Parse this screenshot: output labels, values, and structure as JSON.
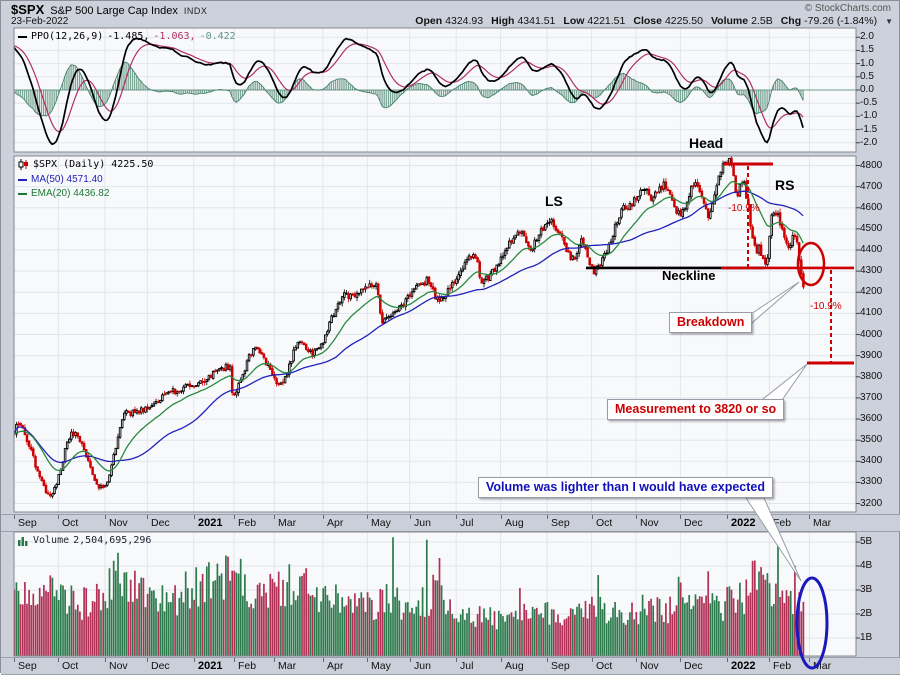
{
  "header": {
    "symbol": "$SPX",
    "name": "S&P 500 Large Cap Index",
    "exchange": "INDX",
    "date": "23-Feb-2022",
    "copyright": "© StockCharts.com",
    "quote": [
      {
        "label": "Open",
        "value": "4324.93"
      },
      {
        "label": "High",
        "value": "4341.51"
      },
      {
        "label": "Low",
        "value": "4221.51"
      },
      {
        "label": "Close",
        "value": "4225.50"
      },
      {
        "label": "Volume",
        "value": "2.5B"
      },
      {
        "label": "Chg",
        "value": "-79.26 (-1.84%)"
      }
    ],
    "dropdown_arrow": "▼"
  },
  "colors": {
    "background": "#cdd1db",
    "panel_bg": "#f8f9fb",
    "grid": "#e3e5ee",
    "border": "#82878f",
    "annotation_red": "#cc0000",
    "annotation_blue": "#1a1abb",
    "candle_up": "#000000",
    "candle_down": "#cc0000"
  },
  "x_axis": {
    "labels": [
      {
        "text": "Sep",
        "bold": false
      },
      {
        "text": "Oct",
        "bold": false
      },
      {
        "text": "Nov",
        "bold": false
      },
      {
        "text": "Dec",
        "bold": false
      },
      {
        "text": "2021",
        "bold": true
      },
      {
        "text": "Feb",
        "bold": false
      },
      {
        "text": "Mar",
        "bold": false
      },
      {
        "text": "Apr",
        "bold": false
      },
      {
        "text": "May",
        "bold": false
      },
      {
        "text": "Jun",
        "bold": false
      },
      {
        "text": "Jul",
        "bold": false
      },
      {
        "text": "Aug",
        "bold": false
      },
      {
        "text": "Sep",
        "bold": false
      },
      {
        "text": "Oct",
        "bold": false
      },
      {
        "text": "Nov",
        "bold": false
      },
      {
        "text": "Dec",
        "bold": false
      },
      {
        "text": "2022",
        "bold": true
      },
      {
        "text": "Feb",
        "bold": false
      },
      {
        "text": "Mar",
        "bold": false
      }
    ]
  },
  "chart_data": [
    {
      "type": "line",
      "name": "PPO (Percentage Price Oscillator)",
      "params": "12,26,9",
      "ylim": [
        -2.35,
        2.35
      ],
      "grid_step": 0.5,
      "current_values": {
        "ppo": -1.485,
        "signal": -1.063,
        "histogram": -0.422
      },
      "legend": {
        "name": "PPO(12,26,9)",
        "ppo_text": "-1.485,",
        "signal_text": "-1.063,",
        "hist_text": "-0.422"
      },
      "axis_ticks": [
        "2.0",
        "1.5",
        "1.0",
        "0.5",
        "0.0",
        "-0.5",
        "-1.0",
        "-1.5",
        "-2.0"
      ],
      "colors": {
        "ppo": "#000000",
        "signal": "#b03060",
        "hist_fill": "#7aa695",
        "hist_line": "#49806d"
      },
      "init": {
        "e12_mult": 1.013,
        "e26_mult": 0.9945,
        "signal_init": 1.7
      }
    },
    {
      "type": "candlestick",
      "symbol": "$SPX",
      "timeframe": "Daily",
      "last_close": 4225.5,
      "ylim": [
        3160,
        4845
      ],
      "y_gridstep": 100,
      "n_slots": 398,
      "n_candles": 374,
      "month_slots": [
        0,
        21,
        43,
        63,
        85,
        104,
        123,
        146,
        167,
        187,
        209,
        230,
        252,
        273,
        294,
        315,
        337,
        357,
        376
      ],
      "anchors": [
        [
          0,
          3530
        ],
        [
          1,
          3580
        ],
        [
          17,
          3246
        ],
        [
          28,
          3534
        ],
        [
          42,
          3270
        ],
        [
          53,
          3627
        ],
        [
          84,
          3756
        ],
        [
          102,
          3850
        ],
        [
          103,
          3714
        ],
        [
          114,
          3933
        ],
        [
          126,
          3768
        ],
        [
          135,
          3974
        ],
        [
          141,
          3909
        ],
        [
          157,
          4185
        ],
        [
          171,
          4233
        ],
        [
          174,
          4063
        ],
        [
          196,
          4255
        ],
        [
          200,
          4166
        ],
        [
          218,
          4374
        ],
        [
          221,
          4258
        ],
        [
          240,
          4480
        ],
        [
          243,
          4406
        ],
        [
          253,
          4537
        ],
        [
          265,
          4358
        ],
        [
          268,
          4449
        ],
        [
          274,
          4300
        ],
        [
          290,
          4607
        ],
        [
          298,
          4698
        ],
        [
          301,
          4647
        ],
        [
          307,
          4705
        ],
        [
          314,
          4567
        ],
        [
          322,
          4712
        ],
        [
          328,
          4568
        ],
        [
          335,
          4793
        ],
        [
          338,
          4819
        ],
        [
          342,
          4670
        ],
        [
          344,
          4726
        ],
        [
          351,
          4398
        ],
        [
          352,
          4410
        ],
        [
          355,
          4327
        ],
        [
          359,
          4589
        ],
        [
          366,
          4419
        ],
        [
          369,
          4475
        ],
        [
          372,
          4305
        ],
        [
          373,
          4225.5
        ]
      ],
      "overlays": [
        {
          "name": "MA(50)",
          "period": 50,
          "color": "#2222bb",
          "current": 4571.4
        },
        {
          "name": "EMA(20)",
          "period": 20,
          "color": "#2a8a3e",
          "current": 4436.82
        }
      ],
      "key_levels": {
        "neckline": 4315,
        "head_top": 4807,
        "measurement_target": 3865
      },
      "legend": {
        "symbol_text": "$SPX (Daily) 4225.50",
        "ma_text": "MA(50) 4571.40",
        "ema_text": "EMA(20) 4436.82"
      },
      "axis_ticks": [
        "4800",
        "4700",
        "4600",
        "4500",
        "4400",
        "4300",
        "4200",
        "4100",
        "4000",
        "3900",
        "3800",
        "3700",
        "3600",
        "3500",
        "3400",
        "3300",
        "3200"
      ],
      "annotations": {
        "ls": "LS",
        "head": "Head",
        "rs": "RS",
        "neckline": "Neckline",
        "drop1": "-10.9%",
        "drop2": "-10.9%",
        "breakdown": "Breakdown",
        "measurement": "Measurement to 3820 or so",
        "volume_note": "Volume was lighter than I would have expected"
      }
    },
    {
      "type": "bar",
      "name": "Volume",
      "last_value_text": "2,504,695,296",
      "last_billions": 2.504,
      "ylim_billions": [
        0,
        5.4
      ],
      "axis_ticks": [
        "5B",
        "4B",
        "3B",
        "2B",
        "1B"
      ],
      "colors": {
        "up": "#2c7a4c",
        "down": "#b03055"
      },
      "anchors": [
        [
          0,
          3.0
        ],
        [
          10,
          2.6
        ],
        [
          17,
          3.3
        ],
        [
          30,
          2.4
        ],
        [
          42,
          2.7
        ],
        [
          48,
          3.8
        ],
        [
          53,
          3.2
        ],
        [
          63,
          2.9
        ],
        [
          75,
          2.6
        ],
        [
          84,
          3.1
        ],
        [
          95,
          3.3
        ],
        [
          103,
          3.6
        ],
        [
          114,
          2.8
        ],
        [
          126,
          3.1
        ],
        [
          135,
          3.3
        ],
        [
          146,
          2.7
        ],
        [
          157,
          2.4
        ],
        [
          171,
          2.3
        ],
        [
          174,
          2.7
        ],
        [
          187,
          2.2
        ],
        [
          196,
          2.6
        ],
        [
          200,
          3.1
        ],
        [
          209,
          2.1
        ],
        [
          221,
          1.9
        ],
        [
          230,
          1.8
        ],
        [
          243,
          1.9
        ],
        [
          253,
          2.0
        ],
        [
          260,
          1.9
        ],
        [
          265,
          2.4
        ],
        [
          274,
          2.3
        ],
        [
          283,
          2.0
        ],
        [
          290,
          2.1
        ],
        [
          298,
          2.2
        ],
        [
          307,
          2.1
        ],
        [
          314,
          2.8
        ],
        [
          322,
          2.9
        ],
        [
          328,
          3.1
        ],
        [
          335,
          2.2
        ],
        [
          338,
          2.5
        ],
        [
          344,
          2.6
        ],
        [
          351,
          3.7
        ],
        [
          352,
          3.5
        ],
        [
          355,
          3.3
        ],
        [
          359,
          3.0
        ],
        [
          363,
          2.7
        ],
        [
          366,
          2.8
        ],
        [
          369,
          2.4
        ],
        [
          371,
          2.7
        ],
        [
          372,
          2.6
        ],
        [
          373,
          2.504
        ]
      ]
    }
  ]
}
